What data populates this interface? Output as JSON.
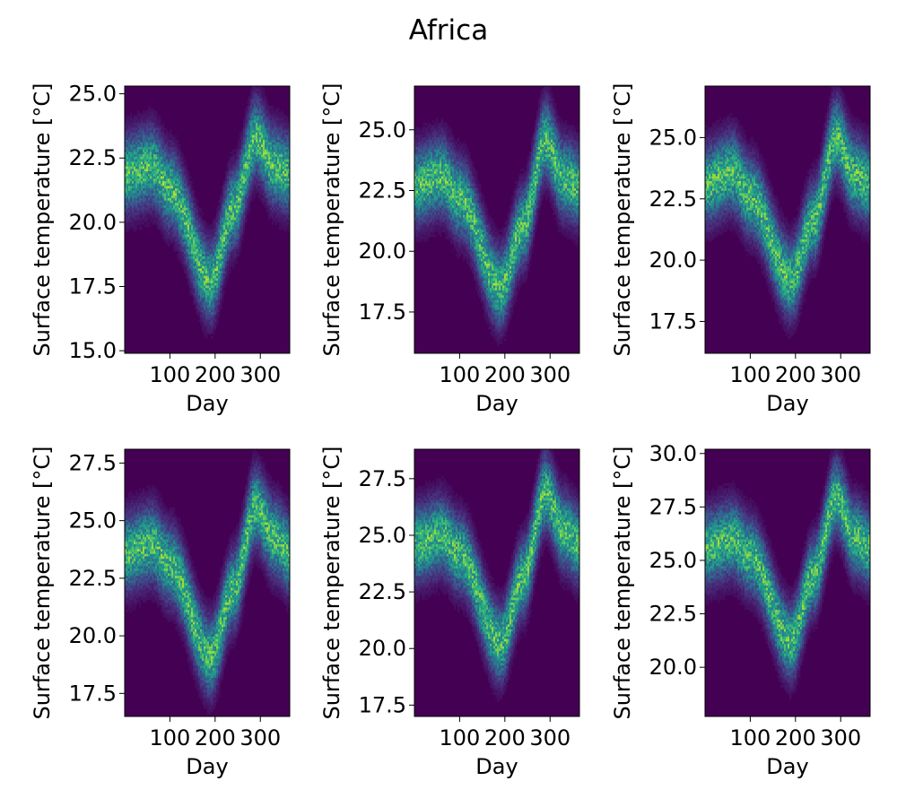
{
  "figure": {
    "title": "Africa"
  },
  "colors": {
    "background": "#440154",
    "axis": "#000000"
  },
  "chart_data": [
    {
      "type": "heatmap",
      "title": "",
      "xlabel": "Day",
      "ylabel": "Surface temperature [°C]",
      "xlim": [
        0,
        365
      ],
      "ylim": [
        14.9,
        25.3
      ],
      "xticks": [
        100,
        200,
        300
      ],
      "yticks": [
        15.0,
        17.5,
        20.0,
        22.5,
        25.0
      ],
      "ytick_labels": [
        "15.0",
        "17.5",
        "20.0",
        "22.5",
        "25.0"
      ],
      "ridge": {
        "x": [
          0,
          60,
          100,
          190,
          240,
          290,
          330,
          365
        ],
        "y": [
          21.9,
          22.2,
          21.3,
          17.7,
          20.5,
          23.3,
          22.2,
          21.9
        ]
      },
      "spread": 0.9
    },
    {
      "type": "heatmap",
      "title": "",
      "xlabel": "Day",
      "ylabel": "Surface temperature [°C]",
      "xlim": [
        0,
        365
      ],
      "ylim": [
        15.8,
        26.8
      ],
      "xticks": [
        100,
        200,
        300
      ],
      "yticks": [
        17.5,
        20.0,
        22.5,
        25.0
      ],
      "ytick_labels": [
        "17.5",
        "20.0",
        "22.5",
        "25.0"
      ],
      "ridge": {
        "x": [
          0,
          60,
          100,
          190,
          240,
          290,
          330,
          365
        ],
        "y": [
          22.7,
          23.1,
          22.2,
          18.5,
          21.0,
          24.6,
          23.0,
          22.7
        ]
      },
      "spread": 0.95
    },
    {
      "type": "heatmap",
      "title": "",
      "xlabel": "Day",
      "ylabel": "Surface temperature [°C]",
      "xlim": [
        0,
        365
      ],
      "ylim": [
        16.2,
        27.1
      ],
      "xticks": [
        100,
        200,
        300
      ],
      "yticks": [
        17.5,
        20.0,
        22.5,
        25.0
      ],
      "ytick_labels": [
        "17.5",
        "20.0",
        "22.5",
        "25.0"
      ],
      "ridge": {
        "x": [
          0,
          60,
          100,
          190,
          240,
          290,
          330,
          365
        ],
        "y": [
          23.1,
          23.6,
          22.6,
          19.2,
          21.6,
          25.0,
          23.5,
          23.1
        ]
      },
      "spread": 0.95
    },
    {
      "type": "heatmap",
      "title": "",
      "xlabel": "Day",
      "ylabel": "Surface temperature [°C]",
      "xlim": [
        0,
        365
      ],
      "ylim": [
        16.5,
        28.1
      ],
      "xticks": [
        100,
        200,
        300
      ],
      "yticks": [
        17.5,
        20.0,
        22.5,
        25.0,
        27.5
      ],
      "ytick_labels": [
        "17.5",
        "20.0",
        "22.5",
        "25.0",
        "27.5"
      ],
      "ridge": {
        "x": [
          0,
          60,
          100,
          190,
          240,
          290,
          330,
          365
        ],
        "y": [
          23.6,
          24.0,
          23.1,
          19.1,
          22.0,
          25.6,
          24.3,
          23.6
        ]
      },
      "spread": 1.0
    },
    {
      "type": "heatmap",
      "title": "",
      "xlabel": "Day",
      "ylabel": "Surface temperature [°C]",
      "xlim": [
        0,
        365
      ],
      "ylim": [
        17.0,
        28.8
      ],
      "xticks": [
        100,
        200,
        300
      ],
      "yticks": [
        17.5,
        20.0,
        22.5,
        25.0,
        27.5
      ],
      "ytick_labels": [
        "17.5",
        "20.0",
        "22.5",
        "25.0",
        "27.5"
      ],
      "ridge": {
        "x": [
          0,
          60,
          100,
          190,
          240,
          290,
          330,
          365
        ],
        "y": [
          24.6,
          25.0,
          24.2,
          20.2,
          23.1,
          26.9,
          25.2,
          24.6
        ]
      },
      "spread": 1.0
    },
    {
      "type": "heatmap",
      "title": "",
      "xlabel": "Day",
      "ylabel": "Surface temperature [°C]",
      "xlim": [
        0,
        365
      ],
      "ylim": [
        17.7,
        30.2
      ],
      "xticks": [
        100,
        200,
        300
      ],
      "yticks": [
        20.0,
        22.5,
        25.0,
        27.5,
        30.0
      ],
      "ytick_labels": [
        "20.0",
        "22.5",
        "25.0",
        "27.5",
        "30.0"
      ],
      "ridge": {
        "x": [
          0,
          60,
          100,
          190,
          240,
          290,
          330,
          365
        ],
        "y": [
          25.6,
          26.0,
          25.2,
          21.2,
          24.3,
          28.0,
          26.1,
          25.6
        ]
      },
      "spread": 1.05
    }
  ]
}
